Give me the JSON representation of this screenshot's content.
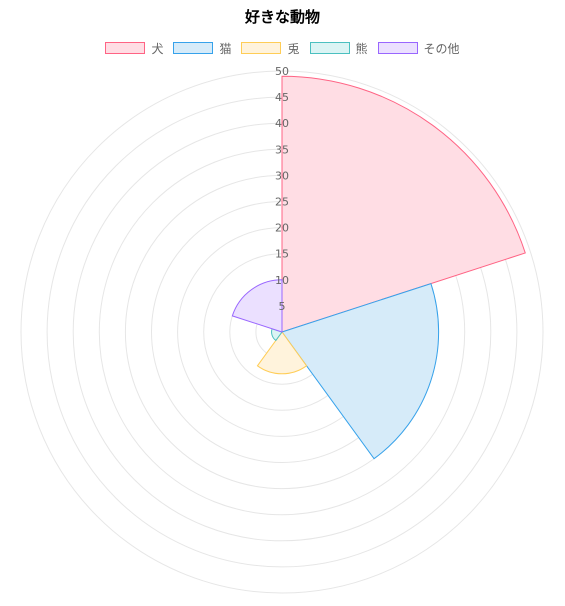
{
  "chart_data": {
    "type": "polarArea",
    "title": "好きな動物",
    "categories": [
      "犬",
      "猫",
      "兎",
      "熊",
      "その他"
    ],
    "values": [
      49,
      30,
      8,
      2,
      10
    ],
    "r_range": [
      0,
      50
    ],
    "r_ticks": [
      5,
      10,
      15,
      20,
      25,
      30,
      35,
      40,
      45,
      50
    ],
    "grid": true,
    "legend_position": "top",
    "colors": {
      "fill": [
        "#ffdde4",
        "#d6ebf9",
        "#fff3dc",
        "#dbf4f4",
        "#ebe0ff"
      ],
      "border": [
        "#ff6384",
        "#36a2eb",
        "#ffcd56",
        "#4bc0c0",
        "#9966ff"
      ],
      "grid": "#e6e6e6"
    }
  }
}
